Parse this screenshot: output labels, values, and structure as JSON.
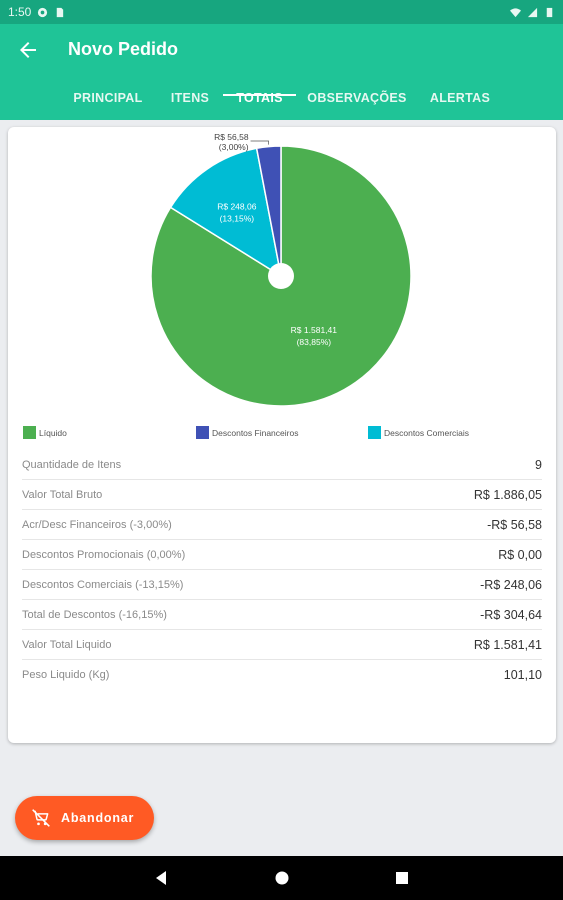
{
  "status_bar": {
    "time": "1:50"
  },
  "header": {
    "title": "Novo Pedido",
    "back_icon": "arrow-back-icon"
  },
  "tabs": [
    {
      "label": "PRINCIPAL",
      "active": false
    },
    {
      "label": "ITENS",
      "active": false
    },
    {
      "label": "TOTAIS",
      "active": true
    },
    {
      "label": "OBSERVAÇÕES",
      "active": false
    },
    {
      "label": "ALERTAS",
      "active": false
    }
  ],
  "chart_data": {
    "type": "pie",
    "slices": [
      {
        "name": "Líquido",
        "value": 1581.41,
        "label": "R$ 1.581,41",
        "percent_label": "(83,85%)",
        "color": "#4caf50"
      },
      {
        "name": "Descontos Comerciais",
        "value": 248.06,
        "label": "R$ 248,06",
        "percent_label": "(13,15%)",
        "color": "#00bcd4"
      },
      {
        "name": "Descontos Financeiros",
        "value": 56.58,
        "label": "R$ 56,58",
        "percent_label": "(3,00%)",
        "color": "#3f51b5"
      }
    ],
    "legend": [
      {
        "name": "Líquido",
        "color": "#4caf50"
      },
      {
        "name": "Descontos Financeiros",
        "color": "#3f51b5"
      },
      {
        "name": "Descontos Comerciais",
        "color": "#00bcd4"
      }
    ],
    "legend_position": "bottom"
  },
  "totals": [
    {
      "label": "Quantidade de Itens",
      "value": "9"
    },
    {
      "label": "Valor Total Bruto",
      "value": "R$ 1.886,05"
    },
    {
      "label": "Acr/Desc Financeiros (-3,00%)",
      "value": "-R$ 56,58"
    },
    {
      "label": "Descontos Promocionais (0,00%)",
      "value": "R$ 0,00"
    },
    {
      "label": "Descontos Comerciais (-13,15%)",
      "value": "-R$ 248,06"
    },
    {
      "label": "Total de Descontos (-16,15%)",
      "value": "-R$ 304,64"
    },
    {
      "label": "Valor Total Liquido",
      "value": "R$ 1.581,41"
    },
    {
      "label": "Peso Liquido (Kg)",
      "value": "101,10"
    }
  ],
  "fab": {
    "label": "Abandonar",
    "icon": "cart-remove-icon",
    "color": "#ff5a24"
  },
  "colors": {
    "app_bar": "#1fc497",
    "status_bar": "#17a67f"
  }
}
